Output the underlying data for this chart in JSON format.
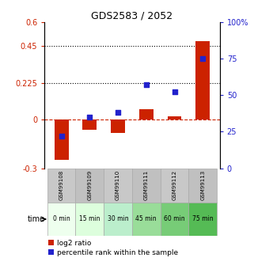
{
  "title": "GDS2583 / 2052",
  "samples": [
    "GSM99108",
    "GSM99109",
    "GSM99110",
    "GSM99111",
    "GSM99112",
    "GSM99113"
  ],
  "time_labels": [
    "0 min",
    "15 min",
    "30 min",
    "45 min",
    "60 min",
    "75 min"
  ],
  "log2_ratio": [
    -0.25,
    -0.065,
    -0.085,
    0.062,
    0.018,
    0.48
  ],
  "percentile_rank": [
    22,
    35,
    38,
    57,
    52,
    75
  ],
  "bar_color": "#cc2200",
  "square_color": "#2222cc",
  "ylim_left": [
    -0.3,
    0.6
  ],
  "ylim_right": [
    0,
    100
  ],
  "yticks_left": [
    -0.3,
    0.0,
    0.225,
    0.45,
    0.6
  ],
  "ytick_labels_left": [
    "-0.3",
    "0",
    "0.225",
    "0.45",
    "0.6"
  ],
  "yticks_right": [
    0,
    25,
    50,
    75,
    100
  ],
  "ytick_labels_right": [
    "0",
    "25",
    "50",
    "75",
    "100%"
  ],
  "hlines": [
    0.225,
    0.45
  ],
  "gray_colors": [
    "#c8c8c8",
    "#c0c0c0",
    "#c8c8c8",
    "#c0c0c0",
    "#c8c8c8",
    "#c0c0c0"
  ],
  "green_colors": [
    "#eeffee",
    "#ddfedd",
    "#bbeecc",
    "#99dd99",
    "#77cc77",
    "#55bb55"
  ],
  "bar_width": 0.5,
  "square_size": 25,
  "legend_items": [
    "log2 ratio",
    "percentile rank within the sample"
  ]
}
